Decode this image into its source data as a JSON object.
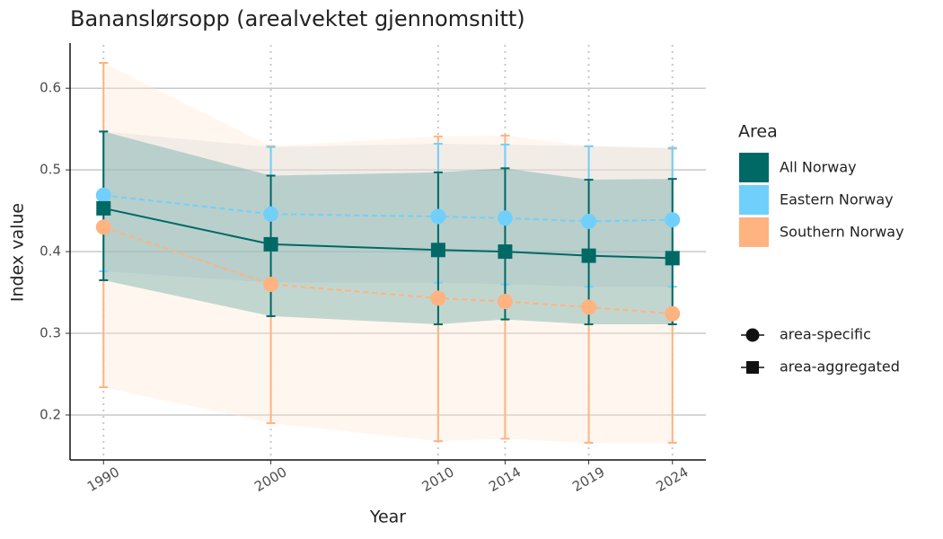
{
  "chart_data": {
    "type": "line",
    "title": "Bananslørsopp (arealvektet gjennomsnitt)",
    "x_label": "Year",
    "y_label": "Index value",
    "x": [
      1990,
      2000,
      2010,
      2014,
      2019,
      2024
    ],
    "xlim": [
      1988,
      2026
    ],
    "xticks": [
      1990,
      2000,
      2010,
      2014,
      2019,
      2024
    ],
    "ylim": [
      0.145,
      0.653
    ],
    "yticks": [
      0.2,
      0.3,
      0.4,
      0.5,
      0.6
    ],
    "grid": true,
    "legend_title": "Area",
    "series": [
      {
        "name": "Southern Norway",
        "color": "#ffb380",
        "ribbon_color": "#ffe4d2",
        "shape": "circle",
        "dash": true,
        "values": [
          0.43,
          0.36,
          0.343,
          0.339,
          0.332,
          0.324
        ],
        "upper": [
          0.631,
          0.529,
          0.541,
          0.542,
          0.529,
          0.526
        ],
        "lower": [
          0.234,
          0.19,
          0.168,
          0.171,
          0.166,
          0.166
        ]
      },
      {
        "name": "Eastern Norway",
        "color": "#71d0fb",
        "ribbon_color": "#d9d9d9",
        "shape": "circle",
        "dash": true,
        "values": [
          0.469,
          0.446,
          0.443,
          0.441,
          0.437,
          0.439
        ],
        "upper": [
          0.547,
          0.528,
          0.532,
          0.531,
          0.529,
          0.527
        ],
        "lower": [
          0.376,
          0.362,
          0.362,
          0.36,
          0.357,
          0.357
        ]
      },
      {
        "name": "All Norway",
        "color": "#006966",
        "ribbon_color": "#4f9a97",
        "shape": "square",
        "dash": false,
        "values": [
          0.453,
          0.409,
          0.402,
          0.4,
          0.395,
          0.392
        ],
        "upper": [
          0.547,
          0.493,
          0.497,
          0.502,
          0.488,
          0.489
        ],
        "lower": [
          0.365,
          0.321,
          0.311,
          0.317,
          0.311,
          0.311
        ]
      }
    ],
    "shape_legend": [
      {
        "label": "area-specific",
        "shape": "circle"
      },
      {
        "label": "area-aggregated",
        "shape": "square"
      }
    ]
  }
}
